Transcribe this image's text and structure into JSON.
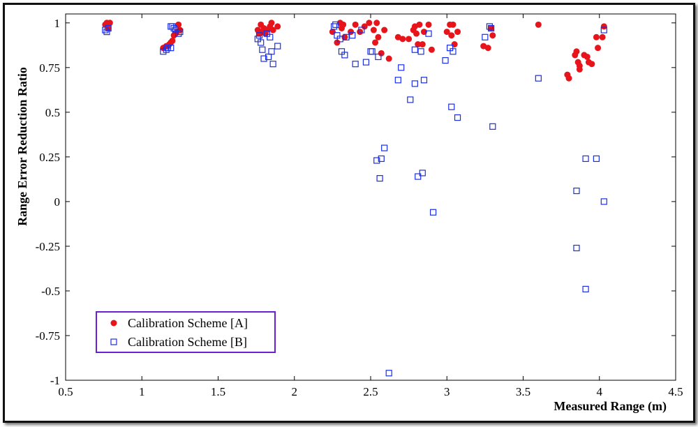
{
  "chart_data": {
    "type": "scatter",
    "xlabel": "Measured Range (m)",
    "ylabel": "Range Error Reduction Ratio",
    "xlim": [
      0.5,
      4.5
    ],
    "ylim": [
      -1,
      1.05
    ],
    "xticks": [
      "0.5",
      "1",
      "1.5",
      "2",
      "2.5",
      "3",
      "3.5",
      "4",
      "4.5"
    ],
    "yticks": [
      "1",
      "0.75",
      "0.5",
      "0.25",
      "0",
      "-0.25",
      "-0.5",
      "-0.75",
      "-1"
    ],
    "grid": false,
    "legend_position": "bottom-left",
    "series": [
      {
        "name": "Calibration Scheme [A]",
        "marker": "filled-circle",
        "color": "#e8141b",
        "points": [
          [
            0.76,
            0.99
          ],
          [
            0.77,
            1.0
          ],
          [
            0.78,
            0.99
          ],
          [
            0.79,
            1.0
          ],
          [
            0.78,
            0.97
          ],
          [
            1.14,
            0.86
          ],
          [
            1.16,
            0.87
          ],
          [
            1.17,
            0.87
          ],
          [
            1.18,
            0.88
          ],
          [
            1.19,
            0.89
          ],
          [
            1.2,
            0.9
          ],
          [
            1.21,
            0.93
          ],
          [
            1.22,
            0.94
          ],
          [
            1.23,
            0.95
          ],
          [
            1.24,
            0.99
          ],
          [
            1.25,
            0.96
          ],
          [
            1.76,
            0.96
          ],
          [
            1.77,
            0.94
          ],
          [
            1.78,
            0.99
          ],
          [
            1.79,
            0.95
          ],
          [
            1.8,
            0.97
          ],
          [
            1.81,
            0.94
          ],
          [
            1.82,
            0.96
          ],
          [
            1.84,
            0.98
          ],
          [
            1.85,
            1.0
          ],
          [
            1.86,
            0.96
          ],
          [
            1.89,
            0.98
          ],
          [
            2.25,
            0.95
          ],
          [
            2.28,
            0.89
          ],
          [
            2.3,
            1.0
          ],
          [
            2.31,
            0.97
          ],
          [
            2.32,
            0.99
          ],
          [
            2.33,
            0.92
          ],
          [
            2.37,
            0.95
          ],
          [
            2.4,
            0.99
          ],
          [
            2.43,
            0.95
          ],
          [
            2.46,
            0.98
          ],
          [
            2.49,
            1.0
          ],
          [
            2.52,
            0.96
          ],
          [
            2.53,
            0.89
          ],
          [
            2.54,
            1.0
          ],
          [
            2.55,
            0.92
          ],
          [
            2.57,
            0.83
          ],
          [
            2.59,
            0.96
          ],
          [
            2.62,
            0.8
          ],
          [
            2.68,
            0.92
          ],
          [
            2.71,
            0.91
          ],
          [
            2.75,
            0.91
          ],
          [
            2.78,
            0.96
          ],
          [
            2.79,
            0.98
          ],
          [
            2.8,
            0.94
          ],
          [
            2.81,
            0.88
          ],
          [
            2.82,
            0.99
          ],
          [
            2.84,
            0.88
          ],
          [
            2.85,
            0.95
          ],
          [
            2.88,
            0.99
          ],
          [
            2.9,
            0.85
          ],
          [
            3.0,
            0.95
          ],
          [
            3.02,
            0.99
          ],
          [
            3.03,
            0.93
          ],
          [
            3.04,
            0.99
          ],
          [
            3.05,
            0.88
          ],
          [
            3.07,
            0.95
          ],
          [
            3.24,
            0.87
          ],
          [
            3.27,
            0.86
          ],
          [
            3.29,
            0.97
          ],
          [
            3.3,
            0.93
          ],
          [
            3.6,
            0.99
          ],
          [
            3.79,
            0.71
          ],
          [
            3.8,
            0.69
          ],
          [
            3.84,
            0.82
          ],
          [
            3.85,
            0.84
          ],
          [
            3.86,
            0.78
          ],
          [
            3.87,
            0.74
          ],
          [
            3.87,
            0.76
          ],
          [
            3.9,
            0.82
          ],
          [
            3.92,
            0.81
          ],
          [
            3.93,
            0.78
          ],
          [
            3.95,
            0.77
          ],
          [
            3.98,
            0.92
          ],
          [
            3.99,
            0.86
          ],
          [
            4.02,
            0.92
          ],
          [
            4.03,
            0.98
          ]
        ]
      },
      {
        "name": "Calibration Scheme [B]",
        "marker": "open-square",
        "color": "#1a2ee6",
        "points": [
          [
            0.76,
            0.96
          ],
          [
            0.77,
            0.95
          ],
          [
            0.78,
            0.97
          ],
          [
            1.14,
            0.84
          ],
          [
            1.16,
            0.85
          ],
          [
            1.17,
            0.86
          ],
          [
            1.19,
            0.86
          ],
          [
            1.19,
            0.98
          ],
          [
            1.2,
            0.98
          ],
          [
            1.21,
            0.97
          ],
          [
            1.22,
            0.96
          ],
          [
            1.24,
            0.94
          ],
          [
            1.25,
            0.95
          ],
          [
            1.76,
            0.91
          ],
          [
            1.77,
            0.93
          ],
          [
            1.78,
            0.89
          ],
          [
            1.79,
            0.85
          ],
          [
            1.8,
            0.8
          ],
          [
            1.82,
            0.94
          ],
          [
            1.83,
            0.81
          ],
          [
            1.84,
            0.92
          ],
          [
            1.85,
            0.84
          ],
          [
            1.86,
            0.77
          ],
          [
            1.89,
            0.87
          ],
          [
            2.26,
            0.98
          ],
          [
            2.27,
            0.99
          ],
          [
            2.28,
            0.93
          ],
          [
            2.3,
            0.91
          ],
          [
            2.31,
            0.84
          ],
          [
            2.33,
            0.82
          ],
          [
            2.34,
            0.92
          ],
          [
            2.38,
            0.93
          ],
          [
            2.4,
            0.77
          ],
          [
            2.44,
            0.96
          ],
          [
            2.47,
            0.78
          ],
          [
            2.5,
            0.84
          ],
          [
            2.51,
            0.84
          ],
          [
            2.54,
            0.23
          ],
          [
            2.55,
            0.81
          ],
          [
            2.56,
            0.13
          ],
          [
            2.57,
            0.24
          ],
          [
            2.59,
            0.3
          ],
          [
            2.62,
            -0.96
          ],
          [
            2.68,
            0.68
          ],
          [
            2.7,
            0.75
          ],
          [
            2.76,
            0.57
          ],
          [
            2.79,
            0.66
          ],
          [
            2.79,
            0.85
          ],
          [
            2.81,
            0.14
          ],
          [
            2.83,
            0.84
          ],
          [
            2.84,
            0.16
          ],
          [
            2.85,
            0.68
          ],
          [
            2.88,
            0.94
          ],
          [
            2.91,
            -0.06
          ],
          [
            2.99,
            0.79
          ],
          [
            3.02,
            0.86
          ],
          [
            3.04,
            0.84
          ],
          [
            3.03,
            0.53
          ],
          [
            3.07,
            0.47
          ],
          [
            3.25,
            0.92
          ],
          [
            3.28,
            0.98
          ],
          [
            3.29,
            0.97
          ],
          [
            3.3,
            0.42
          ],
          [
            3.6,
            0.69
          ],
          [
            3.85,
            0.06
          ],
          [
            3.85,
            -0.26
          ],
          [
            3.91,
            -0.49
          ],
          [
            3.91,
            0.24
          ],
          [
            3.98,
            0.24
          ],
          [
            4.03,
            0.0
          ],
          [
            4.03,
            0.96
          ]
        ]
      }
    ]
  }
}
